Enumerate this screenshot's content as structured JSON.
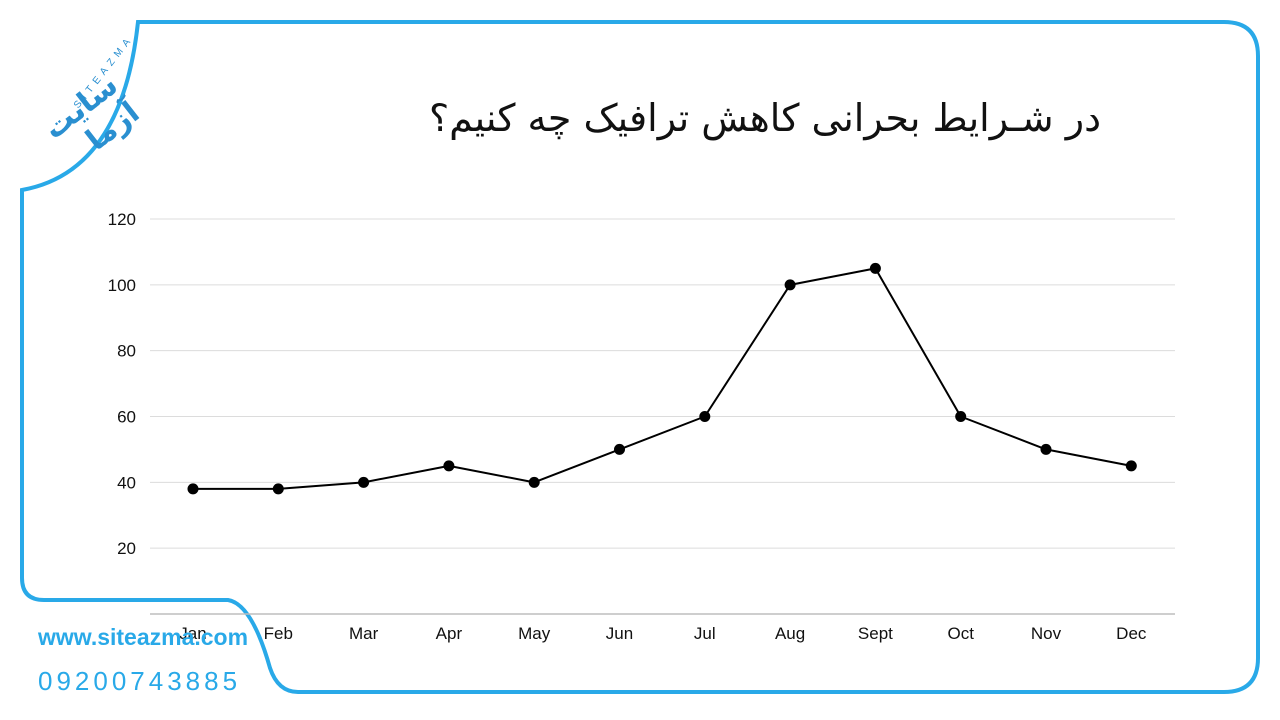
{
  "title": "در شـرایط بحرانی کاهش ترافیک  چه کنیم؟",
  "brand": {
    "logo_text": "SITEAZMA",
    "logo_mark": "سایت آزما",
    "website": "www.siteazma.com",
    "phone": "09200743885",
    "accent_color": "#29a9e8"
  },
  "chart_data": {
    "type": "line",
    "categories": [
      "Jan",
      "Feb",
      "Mar",
      "Apr",
      "May",
      "Jun",
      "Jul",
      "Aug",
      "Sept",
      "Oct",
      "Nov",
      "Dec"
    ],
    "values": [
      38,
      38,
      40,
      45,
      40,
      50,
      60,
      100,
      105,
      60,
      50,
      45
    ],
    "yticks": [
      20,
      40,
      60,
      80,
      100,
      120
    ],
    "ylim": [
      0,
      120
    ],
    "grid": true,
    "line_color": "#000000"
  }
}
